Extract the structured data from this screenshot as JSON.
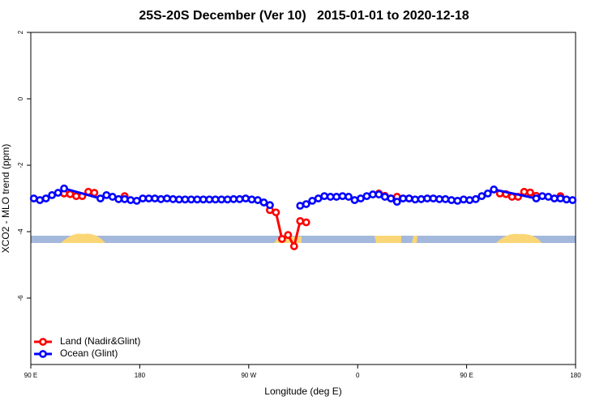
{
  "chart_data": {
    "type": "line",
    "title": "25S-20S December (Ver 10)   2015-01-01 to 2020-12-18",
    "xlabel": "Longitude (deg E)",
    "ylabel": "XCO2 - MLO trend (ppm)",
    "xlim": [
      90,
      540
    ],
    "ylim": [
      -8,
      2
    ],
    "xticks": [
      {
        "value": 90,
        "label": "90 E"
      },
      180,
      {
        "value": 270,
        "label": "90 W"
      },
      {
        "value": 360,
        "label": "0"
      },
      {
        "value": 450,
        "label": "90 E"
      },
      {
        "value": 540,
        "label": "180"
      }
    ],
    "yticks": [
      2,
      0,
      -2,
      -4,
      -6
    ],
    "legend": "bottomleft",
    "series": [
      {
        "name": "Land (Nadir&Glint)",
        "color": "#ff0000",
        "x": [
          117.5,
          122.5,
          127.5,
          132.5,
          137.5,
          142.5,
          null,
          167.5,
          null,
          287.5,
          292.5,
          297.5,
          302.5,
          307.5,
          312.5,
          317.5,
          null,
          377.5,
          382.5,
          387.5,
          392.5,
          null,
          402.5,
          null,
          477.5,
          482.5,
          487.5,
          492.5,
          497.5,
          502.5,
          507.5,
          null,
          527.5
        ],
        "values": [
          -2.85,
          -2.87,
          -2.93,
          -2.93,
          -2.8,
          -2.83,
          null,
          -2.93,
          null,
          -3.35,
          -3.42,
          -4.22,
          -4.1,
          -4.44,
          -3.68,
          -3.72,
          null,
          -2.85,
          -2.92,
          -3.0,
          -2.95,
          null,
          -3.0,
          null,
          -2.85,
          -2.87,
          -2.95,
          -2.95,
          -2.8,
          -2.82,
          -2.92,
          null,
          -2.93
        ]
      },
      {
        "name": "Ocean (Glint)",
        "color": "#0000ff",
        "x": [
          92.5,
          97.5,
          102.5,
          107.5,
          112.5,
          117.5,
          147.5,
          152.5,
          157.5,
          162.5,
          167.5,
          172.5,
          177.5,
          182.5,
          187.5,
          192.5,
          197.5,
          202.5,
          207.5,
          212.5,
          217.5,
          222.5,
          227.5,
          232.5,
          237.5,
          242.5,
          247.5,
          252.5,
          257.5,
          262.5,
          267.5,
          272.5,
          277.5,
          282.5,
          287.5,
          null,
          312.5,
          317.5,
          322.5,
          327.5,
          332.5,
          337.5,
          342.5,
          347.5,
          352.5,
          357.5,
          362.5,
          367.5,
          372.5,
          377.5,
          382.5,
          387.5,
          392.5,
          397.5,
          402.5,
          407.5,
          412.5,
          417.5,
          422.5,
          427.5,
          432.5,
          437.5,
          442.5,
          447.5,
          452.5,
          457.5,
          462.5,
          467.5,
          472.5,
          507.5,
          512.5,
          517.5,
          522.5,
          527.5,
          532.5,
          537.5
        ],
        "values": [
          -3.0,
          -3.05,
          -3.0,
          -2.9,
          -2.83,
          -2.7,
          -3.0,
          -2.9,
          -2.95,
          -3.02,
          -3.02,
          -3.05,
          -3.07,
          -3.0,
          -3.0,
          -3.0,
          -3.02,
          -3.0,
          -3.02,
          -3.03,
          -3.03,
          -3.03,
          -3.03,
          -3.03,
          -3.03,
          -3.03,
          -3.03,
          -3.03,
          -3.02,
          -3.02,
          -3.0,
          -3.03,
          -3.05,
          -3.12,
          -3.2,
          null,
          -3.22,
          -3.17,
          -3.07,
          -3.0,
          -2.93,
          -2.95,
          -2.95,
          -2.93,
          -2.95,
          -3.05,
          -3.0,
          -2.93,
          -2.88,
          -2.88,
          -2.95,
          -3.0,
          -3.1,
          -3.0,
          -3.0,
          -3.03,
          -3.02,
          -3.0,
          -3.0,
          -3.02,
          -3.02,
          -3.05,
          -3.07,
          -3.03,
          -3.05,
          -3.02,
          -2.93,
          -2.85,
          -2.73,
          -3.0,
          -2.93,
          -2.95,
          -3.0,
          -3.0,
          -3.03,
          -3.05
        ]
      }
    ]
  }
}
